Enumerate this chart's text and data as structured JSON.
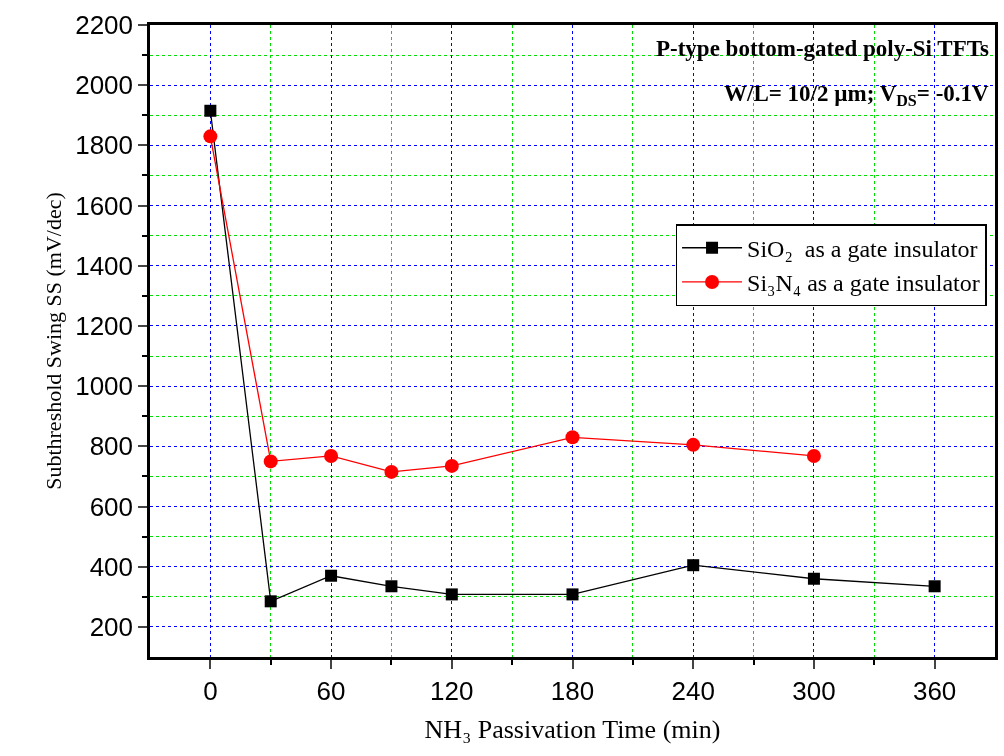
{
  "chart_data": {
    "type": "line",
    "xlabel": "NH₃ Passivation Time (min)",
    "ylabel": "Subthreshold Swing SS (mV/dec)",
    "x": [
      0,
      30,
      60,
      90,
      120,
      180,
      240,
      300,
      360
    ],
    "series": [
      {
        "name": "SiO₂  as a gate insulator",
        "color": "#000000",
        "marker": "square",
        "values": [
          1915,
          285,
          370,
          335,
          308,
          308,
          405,
          360,
          335
        ]
      },
      {
        "name": "Si₃N₄ as a gate insulator",
        "color": "#ff0000",
        "marker": "circle",
        "values": [
          1830,
          750,
          768,
          715,
          735,
          830,
          805,
          768,
          null
        ]
      }
    ],
    "xlim": [
      -30,
      390
    ],
    "ylim": [
      100,
      2200
    ],
    "xticks": [
      0,
      {
        "value": 30,
        "label": null
      },
      60,
      {
        "value": 90,
        "label": null
      },
      120,
      {
        "value": 150,
        "label": null
      },
      180,
      {
        "value": 210,
        "label": null
      },
      240,
      {
        "value": 270,
        "label": null
      },
      300,
      {
        "value": 330,
        "label": null
      },
      360
    ],
    "yticks": [
      200,
      {
        "value": 300,
        "label": null
      },
      400,
      {
        "value": 500,
        "label": null
      },
      600,
      {
        "value": 700,
        "label": null
      },
      800,
      {
        "value": 900,
        "label": null
      },
      1000,
      {
        "value": 1100,
        "label": null
      },
      1200,
      {
        "value": 1300,
        "label": null
      },
      1400,
      {
        "value": 1500,
        "label": null
      },
      1600,
      {
        "value": 1700,
        "label": null
      },
      1800,
      {
        "value": 1900,
        "label": null
      },
      2000,
      {
        "value": 2100,
        "label": null
      },
      2200
    ],
    "grid": true,
    "legend": "right",
    "line_style": "solid",
    "annotations": [
      "P-type bottom-gated poly-Si TFTs",
      "W/L= 10/2 µm; V$_{DS}$= -0.1V"
    ]
  }
}
